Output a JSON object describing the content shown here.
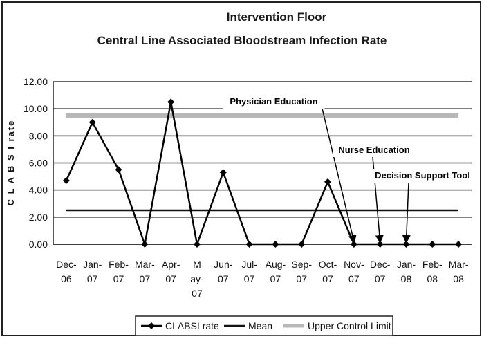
{
  "chart_data": {
    "type": "line",
    "title": "Intervention Floor",
    "subtitle": "Central Line Associated Bloodstream Infection Rate",
    "ylabel": "C L A B S I rate",
    "xlabel": "",
    "ylim": [
      0,
      12
    ],
    "yticks": [
      "0.00",
      "2.00",
      "4.00",
      "6.00",
      "8.00",
      "10.00",
      "12.00"
    ],
    "categories": [
      [
        "Dec-",
        "06"
      ],
      [
        "Jan-",
        "07"
      ],
      [
        "Feb-",
        "07"
      ],
      [
        "Mar-",
        "07"
      ],
      [
        "Apr-",
        "07"
      ],
      [
        "M",
        "ay-",
        "07"
      ],
      [
        "Jun-",
        "07"
      ],
      [
        "Jul-",
        "07"
      ],
      [
        "Aug-",
        "07"
      ],
      [
        "Sep-",
        "07"
      ],
      [
        "Oct-",
        "07"
      ],
      [
        "Nov-",
        "07"
      ],
      [
        "Dec-",
        "07"
      ],
      [
        "Jan-",
        "08"
      ],
      [
        "Feb-",
        "08"
      ],
      [
        "Mar-",
        "08"
      ]
    ],
    "grid": true,
    "legend_position": "bottom",
    "series": [
      {
        "name": "CLABSI rate",
        "values": [
          4.7,
          9.0,
          5.5,
          0,
          10.5,
          0,
          5.3,
          0,
          0,
          0,
          4.6,
          0,
          0,
          0,
          0,
          0
        ],
        "marker": "diamond",
        "color": "#000000"
      },
      {
        "name": "Mean",
        "values": [
          2.5,
          2.5,
          2.5,
          2.5,
          2.5,
          2.5,
          2.5,
          2.5,
          2.5,
          2.5,
          2.5,
          2.5,
          2.5,
          2.5,
          2.5,
          2.5
        ],
        "color": "#111111"
      },
      {
        "name": "Upper Control Limit",
        "values": [
          9.5,
          9.5,
          9.5,
          9.5,
          9.5,
          9.5,
          9.5,
          9.5,
          9.5,
          9.5,
          9.5,
          9.5,
          9.5,
          9.5,
          9.5,
          9.5
        ],
        "color": "#b8b8b8"
      }
    ],
    "annotations": [
      {
        "text": "Physician Education",
        "category_index": 11
      },
      {
        "text": "Nurse Education",
        "category_index": 12
      },
      {
        "text": "Decision Support Tool",
        "category_index": 13
      }
    ]
  }
}
